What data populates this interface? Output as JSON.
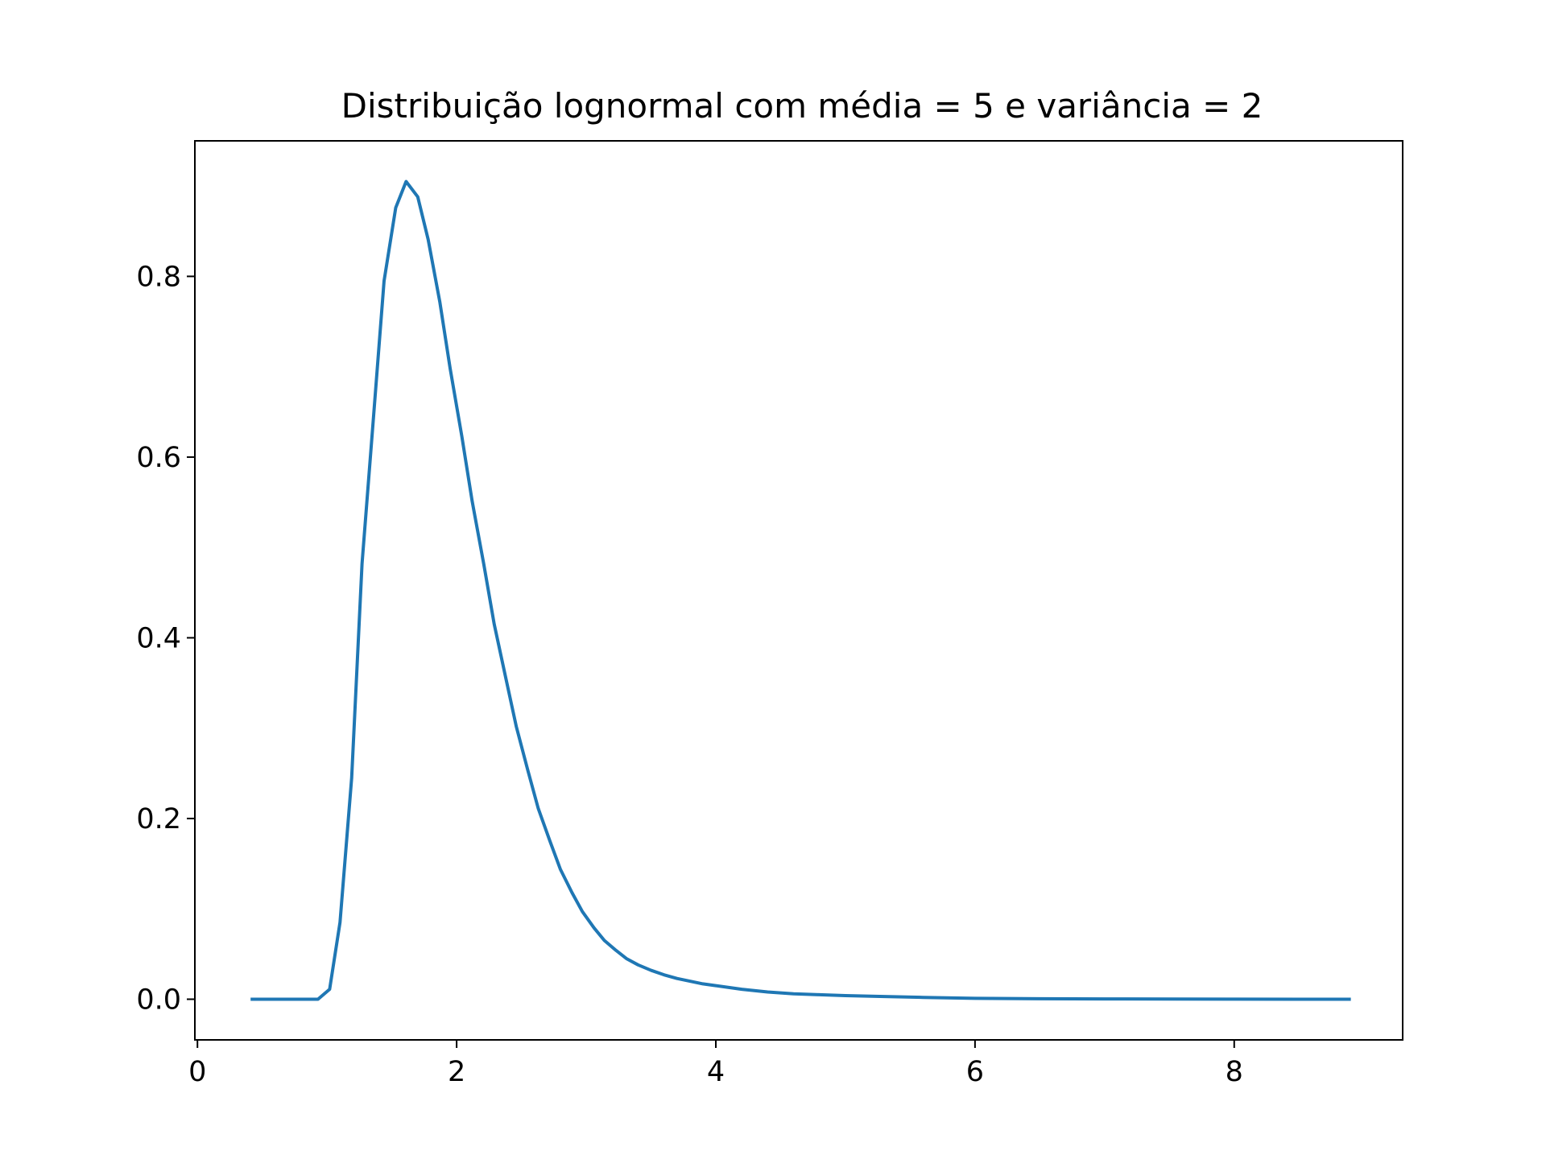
{
  "chart_data": {
    "type": "line",
    "title": "Distribuição lognormal com média = 5 e variância = 2",
    "xlabel": "",
    "ylabel": "",
    "xlim": [
      -0.02,
      9.3
    ],
    "ylim": [
      -0.045,
      0.95
    ],
    "x_ticks": [
      0,
      2,
      4,
      6,
      8
    ],
    "x_tick_labels": [
      "0",
      "2",
      "4",
      "6",
      "8"
    ],
    "y_ticks": [
      0.0,
      0.2,
      0.4,
      0.6,
      0.8
    ],
    "y_tick_labels": [
      "0.0",
      "0.2",
      "0.4",
      "0.6",
      "0.8"
    ],
    "grid": false,
    "legend": "none",
    "series": [
      {
        "color": "#1f77b4",
        "x": [
          0.41,
          0.5,
          0.6,
          0.7,
          0.8,
          0.93,
          1.02,
          1.1,
          1.19,
          1.27,
          1.36,
          1.44,
          1.53,
          1.61,
          1.7,
          1.78,
          1.87,
          1.95,
          2.04,
          2.12,
          2.21,
          2.29,
          2.38,
          2.46,
          2.55,
          2.63,
          2.72,
          2.8,
          2.89,
          2.97,
          3.06,
          3.14,
          3.23,
          3.31,
          3.4,
          3.5,
          3.6,
          3.7,
          3.8,
          3.9,
          4.0,
          4.2,
          4.4,
          4.6,
          4.8,
          5.0,
          5.3,
          5.6,
          6.0,
          6.5,
          7.0,
          7.5,
          8.0,
          8.5,
          8.9
        ],
        "y": [
          0.0,
          0.0,
          0.0,
          0.0,
          0.0,
          0.0,
          0.011,
          0.085,
          0.245,
          0.482,
          0.647,
          0.795,
          0.876,
          0.905,
          0.888,
          0.841,
          0.772,
          0.698,
          0.623,
          0.551,
          0.481,
          0.415,
          0.355,
          0.302,
          0.253,
          0.211,
          0.175,
          0.144,
          0.118,
          0.097,
          0.079,
          0.065,
          0.054,
          0.045,
          0.038,
          0.032,
          0.027,
          0.023,
          0.02,
          0.017,
          0.015,
          0.011,
          0.008,
          0.006,
          0.005,
          0.004,
          0.003,
          0.002,
          0.001,
          0.0005,
          0.0003,
          0.0002,
          0.0001,
          0.0,
          0.0
        ]
      }
    ]
  }
}
